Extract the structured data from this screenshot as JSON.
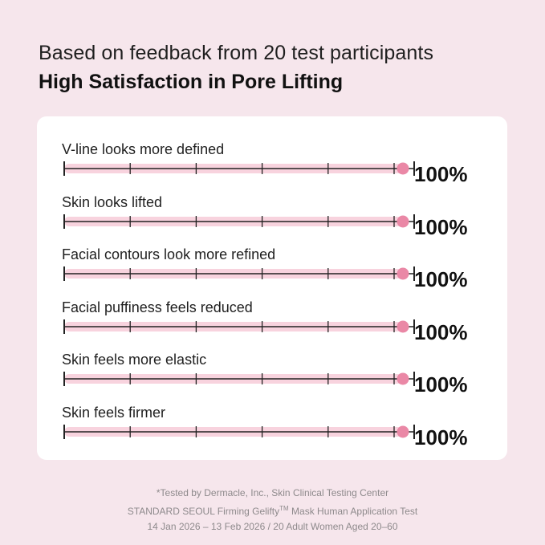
{
  "header": {
    "subtitle": "Based on feedback from 20 test participants",
    "title": "High Satisfaction in Pore Lifting"
  },
  "colors": {
    "background": "#f6e6ec",
    "card": "#ffffff",
    "track": "#f8d3de",
    "dot": "#ea88a6",
    "axis": "#222222"
  },
  "chart_data": {
    "type": "bar",
    "orientation": "horizontal",
    "categories": [
      "V-line looks more defined",
      "Skin looks lifted",
      "Facial contours look more refined",
      "Facial puffiness feels reduced",
      "Skin feels more elastic",
      "Skin feels firmer"
    ],
    "values": [
      100,
      100,
      100,
      100,
      100,
      100
    ],
    "value_labels": [
      "100%",
      "100%",
      "100%",
      "100%",
      "100%",
      "100%"
    ],
    "xlim": [
      0,
      100
    ],
    "ticks": 6
  },
  "footnote": {
    "line1": "*Tested by Dermacle, Inc., Skin Clinical Testing Center",
    "line2_pre": "STANDARD SEOUL Firming Gelifty",
    "line2_sup": "TM",
    "line2_post": " Mask Human Application Test",
    "line3": "14 Jan 2026 – 13 Feb 2026 / 20 Adult Women Aged 20–60"
  }
}
